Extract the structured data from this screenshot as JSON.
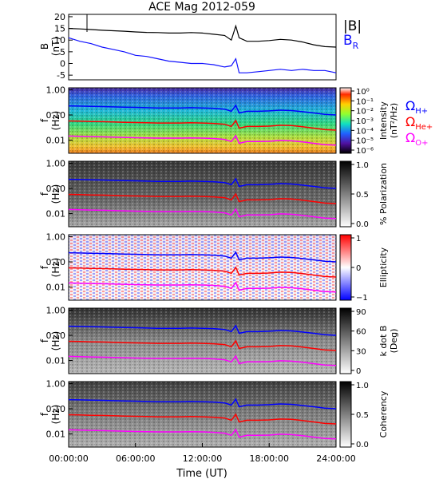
{
  "colors": {
    "B": "#000000",
    "BR": "#1010ff",
    "H": "#0000ff",
    "He": "#ff0000",
    "O": "#ff00ff"
  },
  "chart_data": [
    {
      "type": "line",
      "title": "ACE Mag 2012-059",
      "ylabel": "B",
      "yunit": "(nT)",
      "ylim": [
        -7,
        21
      ],
      "yticks": [
        "20",
        "15",
        "10",
        "5",
        "0",
        "-5"
      ],
      "x": [
        0,
        1,
        2,
        3,
        4,
        5,
        6,
        7,
        8,
        9,
        10,
        11,
        12,
        13,
        14,
        14.6,
        15,
        15.3,
        16,
        17,
        18,
        19,
        20,
        21,
        22,
        23,
        24
      ],
      "series": [
        {
          "name": "|B|",
          "values": [
            15,
            14.8,
            14.5,
            14.2,
            14,
            13.8,
            13.5,
            13.3,
            13.2,
            13,
            13,
            13.2,
            13,
            12.5,
            12,
            10,
            16,
            11,
            9.5,
            9.5,
            9.8,
            10.3,
            10,
            9.2,
            8,
            7.2,
            7
          ]
        },
        {
          "name": "B",
          "subscript": "R",
          "values": [
            11,
            9.5,
            8.5,
            7,
            6,
            5,
            3.5,
            3,
            2,
            1,
            0.5,
            0,
            0,
            -0.5,
            -1.5,
            -1,
            2,
            -4,
            -4,
            -3.5,
            -3,
            -2.5,
            -3,
            -2.5,
            -3,
            -3,
            -4
          ]
        }
      ]
    },
    {
      "type": "heatmap",
      "ylabel": "f",
      "yunit": "(Hz)",
      "ylim": [
        0.003,
        1.0
      ],
      "yticks": [
        "1.00",
        "0.10",
        "0.01"
      ],
      "colorbar": {
        "label": "Intensity",
        "unit": "(nT²/Hz)",
        "ticks": [
          "10⁰",
          "10⁻¹",
          "10⁻²",
          "10⁻³",
          "10⁻⁴",
          "10⁻⁵",
          "10⁻⁶"
        ],
        "scale": "log"
      },
      "legend": [
        {
          "label": "Ω",
          "sub": "H+"
        },
        {
          "label": "Ω",
          "sub": "He+"
        },
        {
          "label": "Ω",
          "sub": "O+"
        }
      ]
    },
    {
      "type": "heatmap",
      "ylabel": "f",
      "yunit": "(Hz)",
      "yticks": [
        "1.00",
        "0.10",
        "0.01"
      ],
      "colorbar": {
        "label": "% Polarization",
        "ticks": [
          "1.0",
          "0.5",
          "0.0"
        ]
      }
    },
    {
      "type": "heatmap",
      "ylabel": "f",
      "yunit": "(Hz)",
      "yticks": [
        "1.00",
        "0.10",
        "0.01"
      ],
      "colorbar": {
        "label": "Ellipticity",
        "ticks": [
          "1",
          "0",
          "−1"
        ]
      }
    },
    {
      "type": "heatmap",
      "ylabel": "f",
      "yunit": "(Hz)",
      "yticks": [
        "1.00",
        "0.10",
        "0.01"
      ],
      "colorbar": {
        "label": "k dot B",
        "unit": "(Deg)",
        "ticks": [
          "90",
          "60",
          "30",
          "0"
        ]
      }
    },
    {
      "type": "heatmap",
      "ylabel": "f",
      "yunit": "(Hz)",
      "yticks": [
        "1.00",
        "0.10",
        "0.01"
      ],
      "colorbar": {
        "label": "Coherency",
        "ticks": [
          "1.0",
          "0.5",
          "0.0"
        ]
      }
    }
  ],
  "gyrofrequency": {
    "x": [
      0,
      1,
      2,
      3,
      4,
      5,
      6,
      7,
      8,
      9,
      10,
      11,
      12,
      13,
      14,
      14.6,
      15,
      15.3,
      16,
      17,
      18,
      19,
      20,
      21,
      22,
      23,
      24
    ],
    "H": [
      0.23,
      0.225,
      0.22,
      0.215,
      0.21,
      0.205,
      0.2,
      0.195,
      0.19,
      0.19,
      0.19,
      0.195,
      0.19,
      0.185,
      0.17,
      0.14,
      0.24,
      0.12,
      0.14,
      0.14,
      0.145,
      0.155,
      0.15,
      0.135,
      0.12,
      0.105,
      0.1
    ],
    "He": [
      0.058,
      0.057,
      0.055,
      0.054,
      0.053,
      0.051,
      0.05,
      0.049,
      0.048,
      0.048,
      0.048,
      0.049,
      0.048,
      0.046,
      0.043,
      0.035,
      0.06,
      0.03,
      0.035,
      0.035,
      0.036,
      0.039,
      0.038,
      0.034,
      0.03,
      0.026,
      0.025
    ],
    "O": [
      0.0145,
      0.0142,
      0.0138,
      0.0135,
      0.0132,
      0.0128,
      0.0125,
      0.0122,
      0.012,
      0.012,
      0.012,
      0.0122,
      0.012,
      0.0116,
      0.0107,
      0.0088,
      0.015,
      0.0075,
      0.0088,
      0.0088,
      0.009,
      0.0097,
      0.0094,
      0.0085,
      0.0075,
      0.0066,
      0.0063
    ]
  },
  "xaxis": {
    "label": "Time (UT)",
    "ticks": [
      "00:00:00",
      "06:00:00",
      "12:00:00",
      "18:00:00",
      "24:00:00"
    ],
    "range": [
      0,
      24
    ]
  }
}
